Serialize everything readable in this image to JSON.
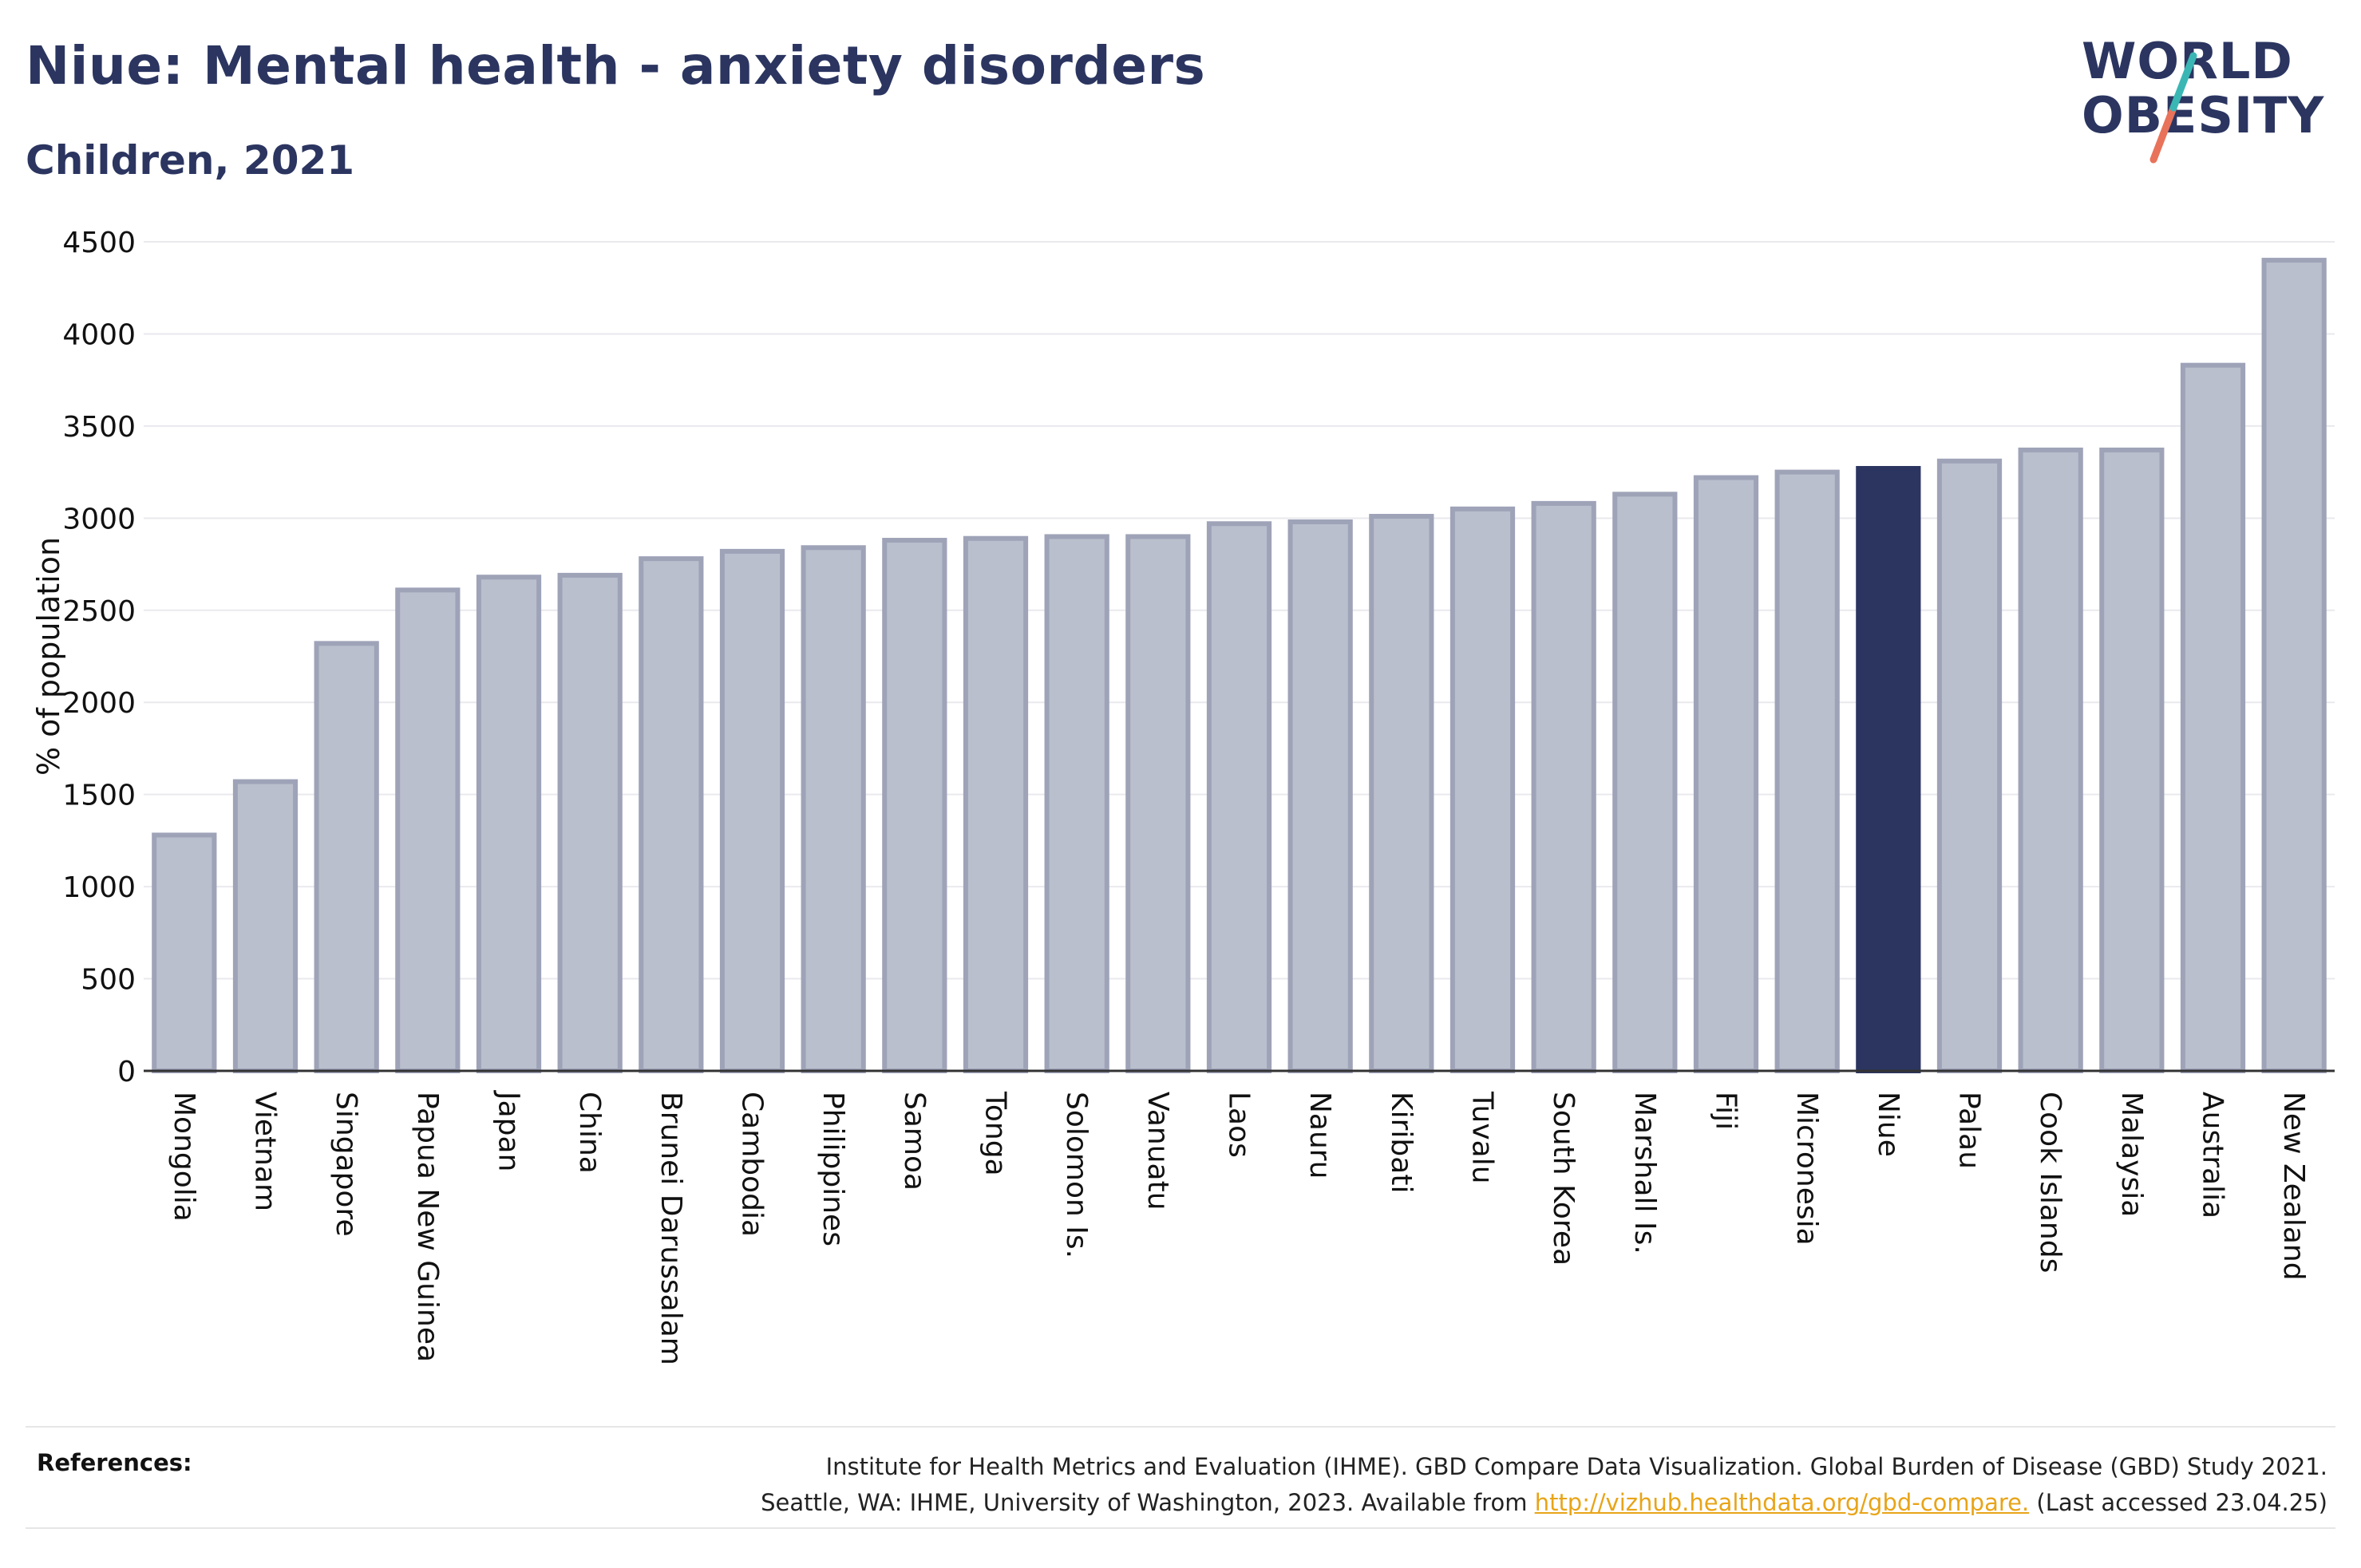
{
  "header": {
    "title": "Niue: Mental health - anxiety disorders",
    "subtitle": "Children, 2021"
  },
  "logo": {
    "line1": "WORLD",
    "line2": "OBESITY"
  },
  "chart_data": {
    "type": "bar",
    "title": "Niue: Mental health - anxiety disorders",
    "subtitle": "Children, 2021",
    "ylabel": "% of population",
    "xlabel": "",
    "ylim": [
      0,
      4500
    ],
    "yticks": [
      0,
      500,
      1000,
      1500,
      2000,
      2500,
      3000,
      3500,
      4000,
      4500
    ],
    "grid": true,
    "highlight": "Niue",
    "colors": {
      "default_fill": "#babfcd",
      "default_stroke": "#9ea3b8",
      "highlight": "#2b3560"
    },
    "categories": [
      "Mongolia",
      "Vietnam",
      "Singapore",
      "Papua New Guinea",
      "Japan",
      "China",
      "Brunei Darussalam",
      "Cambodia",
      "Philippines",
      "Samoa",
      "Tonga",
      "Solomon Is.",
      "Vanuatu",
      "Laos",
      "Nauru",
      "Kiribati",
      "Tuvalu",
      "South Korea",
      "Marshall Is.",
      "Fiji",
      "Micronesia",
      "Niue",
      "Palau",
      "Cook Islands",
      "Malaysia",
      "Australia",
      "New Zealand"
    ],
    "values": [
      1280,
      1570,
      2320,
      2610,
      2680,
      2690,
      2780,
      2820,
      2840,
      2880,
      2890,
      2900,
      2900,
      2970,
      2980,
      3010,
      3050,
      3080,
      3130,
      3220,
      3250,
      3270,
      3310,
      3370,
      3370,
      3830,
      4400
    ]
  },
  "references": {
    "label": "References:",
    "line1": "Institute for Health Metrics and Evaluation (IHME). GBD Compare Data Visualization. Global Burden of Disease (GBD) Study 2021.",
    "line2_pre": "Seattle, WA: IHME, University of Washington, 2023. Available from ",
    "link": "http://vizhub.healthdata.org/gbd-compare.",
    "line2_post": " (Last accessed 23.04.25)"
  }
}
